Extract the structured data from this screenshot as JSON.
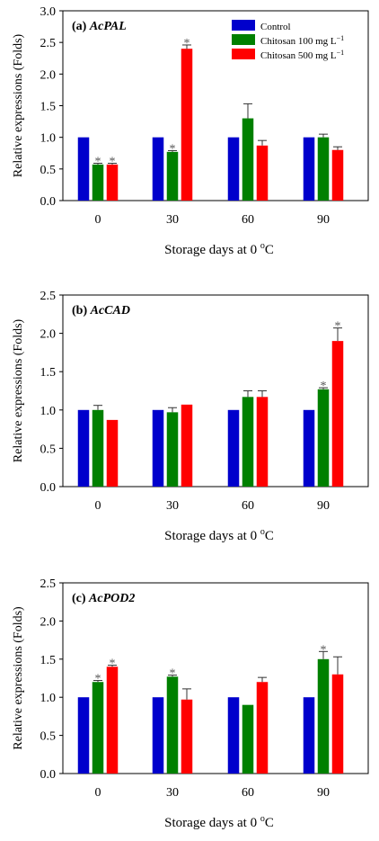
{
  "colors": {
    "control": "#0000CC",
    "chitosan100": "#008000",
    "chitosan500": "#FF0000",
    "axis": "#000000",
    "star": "#555555"
  },
  "chart_data": [
    {
      "type": "bar",
      "panel_label": "(a)",
      "gene": "AcPAL",
      "xlabel": "Storage days at 0 °C",
      "ylabel": "Relative expressions (Folds)",
      "ylim": [
        0,
        3.0
      ],
      "yticks": [
        "0.0",
        "0.5",
        "1.0",
        "1.5",
        "2.0",
        "2.5",
        "3.0"
      ],
      "categories": [
        "0",
        "30",
        "60",
        "90"
      ],
      "legend": {
        "position": "top-right",
        "entries": [
          "Control",
          "Chitosan 100 mg L−1",
          "Chitosan 500 mg L−1"
        ]
      },
      "series": [
        {
          "name": "Control",
          "values": [
            1.0,
            1.0,
            1.0,
            1.0
          ],
          "errors": [
            0,
            0,
            0,
            0
          ],
          "sig": [
            false,
            false,
            false,
            false
          ]
        },
        {
          "name": "Chitosan 100 mg L−1",
          "values": [
            0.57,
            0.77,
            1.3,
            1.0
          ],
          "errors": [
            0.02,
            0.02,
            0.23,
            0.05
          ],
          "sig": [
            true,
            true,
            false,
            false
          ]
        },
        {
          "name": "Chitosan 500 mg L−1",
          "values": [
            0.57,
            2.4,
            0.87,
            0.8
          ],
          "errors": [
            0.02,
            0.06,
            0.08,
            0.05
          ],
          "sig": [
            true,
            true,
            false,
            false
          ]
        }
      ]
    },
    {
      "type": "bar",
      "panel_label": "(b)",
      "gene": "AcCAD",
      "xlabel": "Storage days at 0 °C",
      "ylabel": "Relative expressions (Folds)",
      "ylim": [
        0,
        2.5
      ],
      "yticks": [
        "0.0",
        "0.5",
        "1.0",
        "1.5",
        "2.0",
        "2.5"
      ],
      "categories": [
        "0",
        "30",
        "60",
        "90"
      ],
      "series": [
        {
          "name": "Control",
          "values": [
            1.0,
            1.0,
            1.0,
            1.0
          ],
          "errors": [
            0,
            0,
            0,
            0
          ],
          "sig": [
            false,
            false,
            false,
            false
          ]
        },
        {
          "name": "Chitosan 100 mg L−1",
          "values": [
            1.0,
            0.97,
            1.17,
            1.27
          ],
          "errors": [
            0.06,
            0.06,
            0.08,
            0.02
          ],
          "sig": [
            false,
            false,
            false,
            true
          ]
        },
        {
          "name": "Chitosan 500 mg L−1",
          "values": [
            0.87,
            1.07,
            1.17,
            1.9
          ],
          "errors": [
            0.0,
            0.0,
            0.08,
            0.17
          ],
          "sig": [
            false,
            false,
            false,
            true
          ]
        }
      ]
    },
    {
      "type": "bar",
      "panel_label": "(c)",
      "gene": "AcPOD2",
      "xlabel": "Storage days at 0 °C",
      "ylabel": "Relative expressions (Folds)",
      "ylim": [
        0,
        2.5
      ],
      "yticks": [
        "0.0",
        "0.5",
        "1.0",
        "1.5",
        "2.0",
        "2.5"
      ],
      "categories": [
        "0",
        "30",
        "60",
        "90"
      ],
      "series": [
        {
          "name": "Control",
          "values": [
            1.0,
            1.0,
            1.0,
            1.0
          ],
          "errors": [
            0,
            0,
            0,
            0
          ],
          "sig": [
            false,
            false,
            false,
            false
          ]
        },
        {
          "name": "Chitosan 100 mg L−1",
          "values": [
            1.2,
            1.27,
            0.9,
            1.5
          ],
          "errors": [
            0.02,
            0.02,
            0.0,
            0.1
          ],
          "sig": [
            true,
            true,
            false,
            true
          ]
        },
        {
          "name": "Chitosan 500 mg L−1",
          "values": [
            1.4,
            0.97,
            1.2,
            1.3
          ],
          "errors": [
            0.02,
            0.14,
            0.06,
            0.23
          ],
          "sig": [
            true,
            false,
            false,
            false
          ]
        }
      ]
    }
  ]
}
